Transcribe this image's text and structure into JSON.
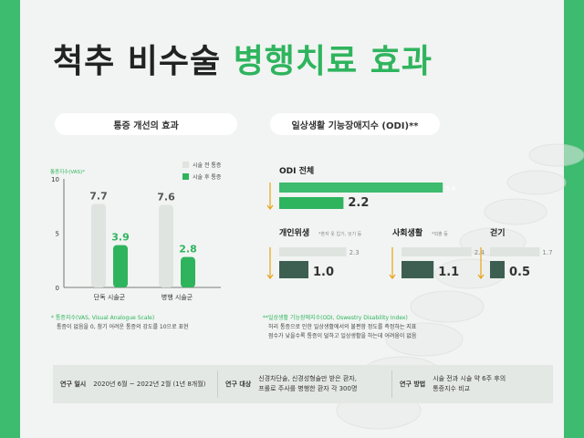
{
  "title": {
    "part1": "척추 비수술",
    "part2": "병행치료 효과"
  },
  "colors": {
    "accent": "#2fb45e",
    "bright": "#3dbb6e",
    "dark": "#3d5f52",
    "light": "#dfe4e0",
    "bg": "#f1f4f2"
  },
  "vas_panel": {
    "header": "통증 개선의 효과",
    "legend": {
      "before": "시술 전 통증",
      "after": "시술 후 통증"
    },
    "note_title": "* 통증지수(VAS, Visual Analogue Scale)",
    "note_text": "통증이 없음을 0, 참기 어려운 통증의 강도를 10으로 표현"
  },
  "odi_panel": {
    "header": "일상생활 기능장애지수 (ODI)**",
    "note_title": "**일상생활 기능장애지수(ODI, Oswestry Disability Index)",
    "note_line1": "허리 통증으로 인한 일상생활에서의 불편함 정도를 측정하는 지표",
    "note_line2": "점수가 낮을수록 통증이 덜하고 일상생활을 하는데 어려움이 없음"
  },
  "footer": {
    "period_label": "연구 일시",
    "period_value": "2020년 6월 ~ 2022년 2월 (1년 8개월)",
    "subject_label": "연구 대상",
    "subject_line1": "신경차단술, 신경성형술만 받은 환자,",
    "subject_line2": "프롤로 주사를 병행한 환자 각 300명",
    "method_label": "연구 방법",
    "method_line1": "시술 전과 시술 약 6주 후의",
    "method_line2": "통증지수 비교"
  },
  "chart_data": [
    {
      "type": "bar",
      "title": "통증 개선의 효과",
      "ylabel": "통증지수(VAS)*",
      "ylim": [
        0,
        10
      ],
      "yticks": [
        0,
        5,
        10
      ],
      "categories": [
        "단독 시술군",
        "병행 시술군"
      ],
      "series": [
        {
          "name": "시술 전 통증",
          "values": [
            7.7,
            7.6
          ]
        },
        {
          "name": "시술 후 통증",
          "values": [
            3.9,
            2.8
          ]
        }
      ],
      "legend": "top-right",
      "grid": false
    },
    {
      "type": "bar",
      "orientation": "horizontal",
      "title": "일상생활 기능장애지수 (ODI)**",
      "groups": [
        {
          "name": "ODI 전체",
          "note": "",
          "before": 5.6,
          "after": 2.2
        },
        {
          "name": "개인위생",
          "note": "*혼자 옷 입기, 씻기 등",
          "before": 2.3,
          "after": 1.0
        },
        {
          "name": "사회생활",
          "note": "*외출 등",
          "before": 2.4,
          "after": 1.1
        },
        {
          "name": "걷기",
          "note": "",
          "before": 1.7,
          "after": 0.5
        }
      ],
      "before_labels": [
        "5.6",
        "2.3",
        "2.4",
        "1.7"
      ],
      "after_labels": [
        "2.2",
        "1.0",
        "1.1",
        "0.5"
      ]
    }
  ]
}
